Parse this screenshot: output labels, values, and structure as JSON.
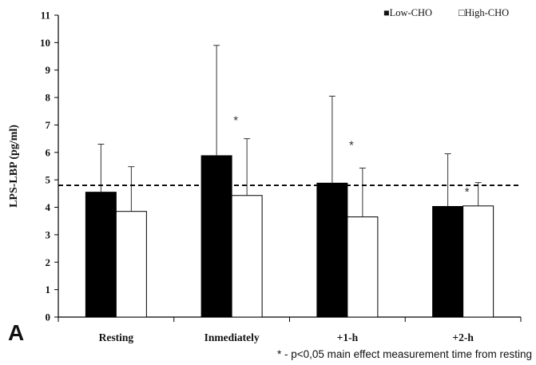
{
  "panel_label": "A",
  "footnote": "* - p<0,05 main effect measurement time from resting",
  "colors": {
    "low": "#000000",
    "high": "#ffffff",
    "outline": "#000000",
    "reference": "#000000"
  },
  "chart_data": {
    "type": "bar",
    "title": "",
    "xlabel": "",
    "ylabel": "LPS-LBP (pg/ml)",
    "ylim": [
      0,
      11
    ],
    "yticks": [
      0,
      1,
      2,
      3,
      4,
      5,
      6,
      7,
      8,
      9,
      10,
      11
    ],
    "grid": false,
    "legend_position": "top-right",
    "categories": [
      "Resting",
      "Inmediately",
      "+1-h",
      "+2-h"
    ],
    "series": [
      {
        "name": "Low-CHO",
        "legend_symbol": "■",
        "values": [
          4.55,
          5.88,
          4.88,
          4.03
        ],
        "error": [
          1.75,
          4.02,
          3.17,
          1.92
        ]
      },
      {
        "name": "High-CHO",
        "legend_symbol": "□",
        "values": [
          3.85,
          4.43,
          3.65,
          4.05
        ],
        "error": [
          1.63,
          2.07,
          1.78,
          0.85
        ]
      }
    ],
    "reference_line": {
      "value": 4.8,
      "style": "dashed"
    },
    "annotations": [
      {
        "text": "*",
        "category": "Inmediately",
        "y": 7.2
      },
      {
        "text": "*",
        "category": "+1-h",
        "y": 6.3
      },
      {
        "text": "*",
        "category": "+2-h",
        "y": 4.6
      }
    ]
  }
}
